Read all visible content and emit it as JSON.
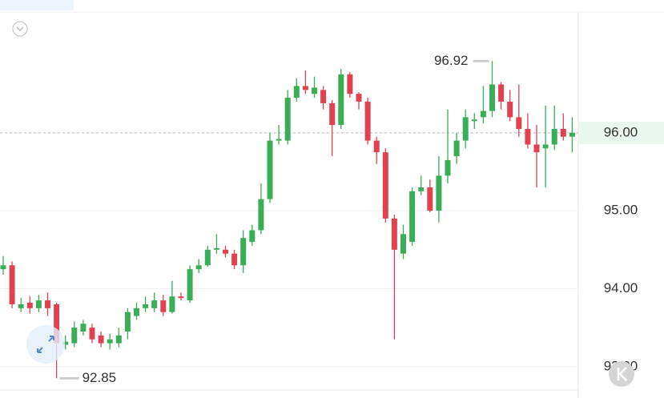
{
  "chart_data": {
    "type": "candlestick",
    "open": [
      94.25,
      94.3,
      93.75,
      93.82,
      93.75,
      93.85,
      93.8,
      93.28,
      93.3,
      93.45,
      93.5,
      93.4,
      93.3,
      93.3,
      93.45,
      93.65,
      93.75,
      93.75,
      93.85,
      93.7,
      93.9,
      93.85,
      94.25,
      94.3,
      94.5,
      94.5,
      94.45,
      94.3,
      94.6,
      94.75,
      95.15,
      95.9,
      95.9,
      96.45,
      96.6,
      96.5,
      96.55,
      96.38,
      96.1,
      96.75,
      96.5,
      96.4,
      95.9,
      95.75,
      94.9,
      94.45,
      94.6,
      95.25,
      95.3,
      95.0,
      95.45,
      95.7,
      95.9,
      96.15,
      96.2,
      96.28,
      96.62,
      96.4,
      96.2,
      96.05,
      95.85,
      95.8,
      95.85,
      96.05,
      95.95
    ],
    "high": [
      94.42,
      94.35,
      93.88,
      93.9,
      93.92,
      93.95,
      93.82,
      93.4,
      93.58,
      93.6,
      93.55,
      93.45,
      93.42,
      93.5,
      93.75,
      93.82,
      93.9,
      93.95,
      93.92,
      94.1,
      93.95,
      94.3,
      94.38,
      94.55,
      94.7,
      94.55,
      94.5,
      94.75,
      94.82,
      95.35,
      96.0,
      96.1,
      96.55,
      96.7,
      96.8,
      96.72,
      96.6,
      96.42,
      96.82,
      96.78,
      96.52,
      96.45,
      95.95,
      95.8,
      94.95,
      94.82,
      95.3,
      95.45,
      95.4,
      95.7,
      96.3,
      96.0,
      96.3,
      96.25,
      96.6,
      96.92,
      96.65,
      96.55,
      96.62,
      96.25,
      96.1,
      96.35,
      96.35,
      96.25,
      96.2
    ],
    "low": [
      94.18,
      93.75,
      93.7,
      93.68,
      93.7,
      93.65,
      92.85,
      93.22,
      93.25,
      93.4,
      93.3,
      93.25,
      93.22,
      93.25,
      93.35,
      93.6,
      93.7,
      93.7,
      93.65,
      93.68,
      93.85,
      93.82,
      94.2,
      94.28,
      94.45,
      94.4,
      94.25,
      94.2,
      94.55,
      94.7,
      95.1,
      95.85,
      95.85,
      96.4,
      96.5,
      96.45,
      96.3,
      95.7,
      96.05,
      96.45,
      96.3,
      95.85,
      95.6,
      94.85,
      93.35,
      94.38,
      94.55,
      95.2,
      94.98,
      94.85,
      95.35,
      95.6,
      95.8,
      96.05,
      96.12,
      96.2,
      96.3,
      96.15,
      95.95,
      95.8,
      95.3,
      95.3,
      95.78,
      95.9,
      95.75
    ],
    "close": [
      94.3,
      93.8,
      93.8,
      93.75,
      93.85,
      93.75,
      93.3,
      93.32,
      93.5,
      93.55,
      93.35,
      93.3,
      93.35,
      93.4,
      93.7,
      93.75,
      93.8,
      93.85,
      93.7,
      93.9,
      93.88,
      94.25,
      94.3,
      94.5,
      94.52,
      94.45,
      94.3,
      94.65,
      94.75,
      95.15,
      95.9,
      95.92,
      96.45,
      96.6,
      96.55,
      96.58,
      96.38,
      96.1,
      96.75,
      96.5,
      96.4,
      95.9,
      95.75,
      94.9,
      94.5,
      94.7,
      95.25,
      95.3,
      95.0,
      95.45,
      95.65,
      95.9,
      96.2,
      96.17,
      96.28,
      96.62,
      96.4,
      96.2,
      96.05,
      95.85,
      95.75,
      95.85,
      96.05,
      95.95,
      96.0
    ],
    "up_color": "#3aae57",
    "down_color": "#e0424f",
    "ylim": [
      92.7,
      97.55
    ],
    "yticks": [
      {
        "value": 93,
        "label": "93.00"
      },
      {
        "value": 94,
        "label": "94.00"
      },
      {
        "value": 95,
        "label": "95.00"
      },
      {
        "value": 96,
        "label": "96.00"
      }
    ],
    "grid": true,
    "max_label": 96.92,
    "min_label": 92.85,
    "last_price": {
      "value": 96,
      "label": "96.00"
    }
  }
}
